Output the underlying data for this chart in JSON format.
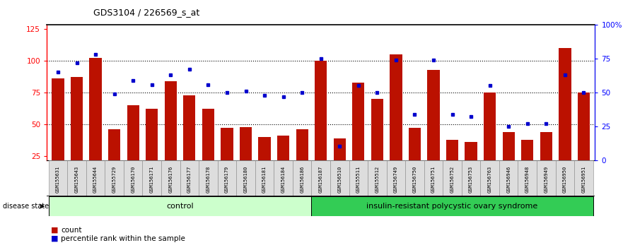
{
  "title": "GDS3104 / 226569_s_at",
  "samples": [
    "GSM155631",
    "GSM155643",
    "GSM155644",
    "GSM155729",
    "GSM156170",
    "GSM156171",
    "GSM156176",
    "GSM156177",
    "GSM156178",
    "GSM156179",
    "GSM156180",
    "GSM156181",
    "GSM156184",
    "GSM156186",
    "GSM156187",
    "GSM156510",
    "GSM155511",
    "GSM155512",
    "GSM156749",
    "GSM156750",
    "GSM156751",
    "GSM156752",
    "GSM156753",
    "GSM156763",
    "GSM156946",
    "GSM156948",
    "GSM156949",
    "GSM156950",
    "GSM156951"
  ],
  "counts": [
    86,
    87,
    102,
    46,
    65,
    62,
    84,
    73,
    62,
    47,
    48,
    40,
    41,
    46,
    100,
    39,
    83,
    70,
    105,
    47,
    93,
    38,
    36,
    75,
    44,
    38,
    44,
    110,
    75
  ],
  "percentile_ranks": [
    65,
    72,
    78,
    49,
    59,
    56,
    63,
    67,
    56,
    50,
    51,
    48,
    47,
    50,
    75,
    10,
    55,
    50,
    74,
    34,
    74,
    34,
    32,
    55,
    25,
    27,
    27,
    63,
    50
  ],
  "control_count": 14,
  "disease_count": 15,
  "bar_color": "#BB1100",
  "marker_color": "#0000CC",
  "control_label": "control",
  "disease_label": "insulin-resistant polycystic ovary syndrome",
  "control_bg": "#CCFFCC",
  "disease_bg": "#33CC55",
  "yticks_left": [
    25,
    50,
    75,
    100,
    125
  ],
  "yticks_right_vals": [
    0,
    25,
    50,
    75,
    100
  ],
  "ytick_right_labels": [
    "0",
    "25",
    "50",
    "75",
    "100%"
  ],
  "ymin": 22,
  "ymax": 128,
  "legend_count_label": "count",
  "legend_percentile_label": "percentile rank within the sample"
}
